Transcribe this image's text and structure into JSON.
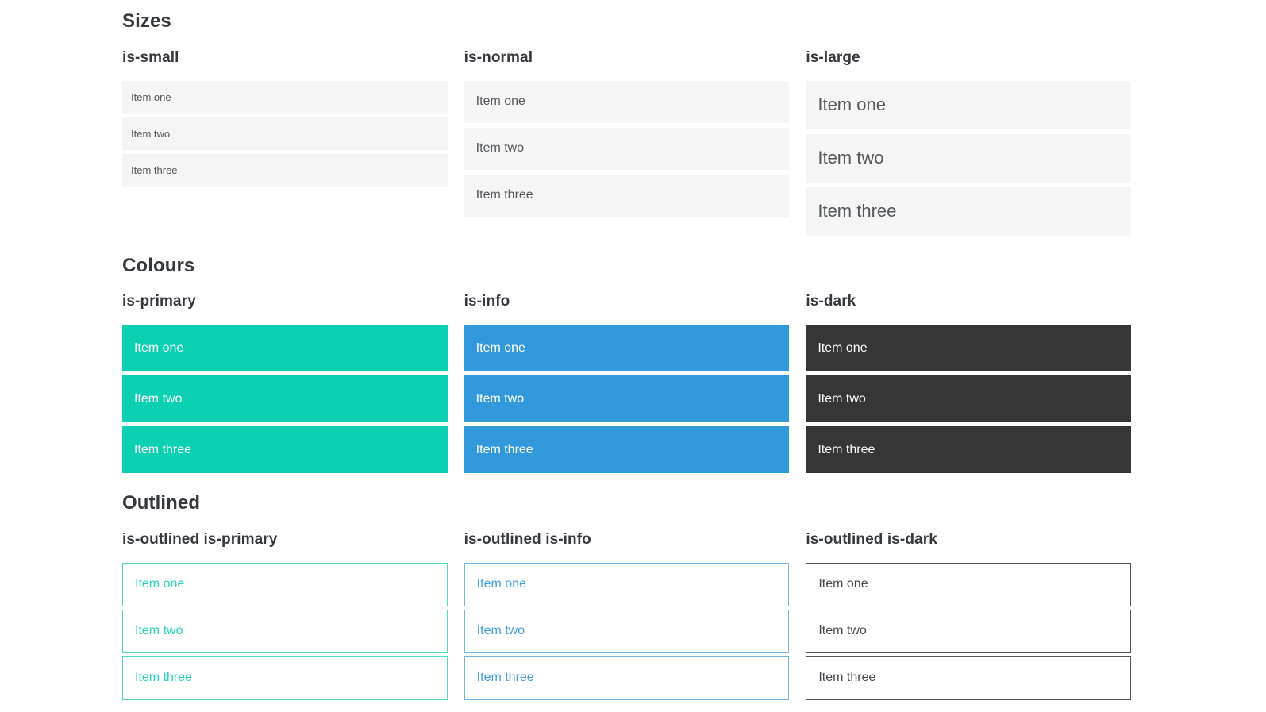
{
  "sections": [
    {
      "title": "Sizes",
      "columns": [
        {
          "label": "is-small",
          "items": [
            "Item one",
            "Item two",
            "Item three"
          ]
        },
        {
          "label": "is-normal",
          "items": [
            "Item one",
            "Item two",
            "Item three"
          ]
        },
        {
          "label": "is-large",
          "items": [
            "Item one",
            "Item two",
            "Item three"
          ]
        }
      ]
    },
    {
      "title": "Colours",
      "columns": [
        {
          "label": "is-primary",
          "items": [
            "Item one",
            "Item two",
            "Item three"
          ]
        },
        {
          "label": "is-info",
          "items": [
            "Item one",
            "Item two",
            "Item three"
          ]
        },
        {
          "label": "is-dark",
          "items": [
            "Item one",
            "Item two",
            "Item three"
          ]
        }
      ]
    },
    {
      "title": "Outlined",
      "columns": [
        {
          "label": "is-outlined is-primary",
          "items": [
            "Item one",
            "Item two",
            "Item three"
          ]
        },
        {
          "label": "is-outlined is-info",
          "items": [
            "Item one",
            "Item two",
            "Item three"
          ]
        },
        {
          "label": "is-outlined is-dark",
          "items": [
            "Item one",
            "Item two",
            "Item three"
          ]
        }
      ]
    }
  ],
  "colors": {
    "primary": "#0cd0b2",
    "info": "#3298dc",
    "dark": "#363636",
    "item_background": "#f5f5f5",
    "item_text": "#54585c",
    "heading_text": "#35393d",
    "item_text_on_color": "#ffffff"
  }
}
